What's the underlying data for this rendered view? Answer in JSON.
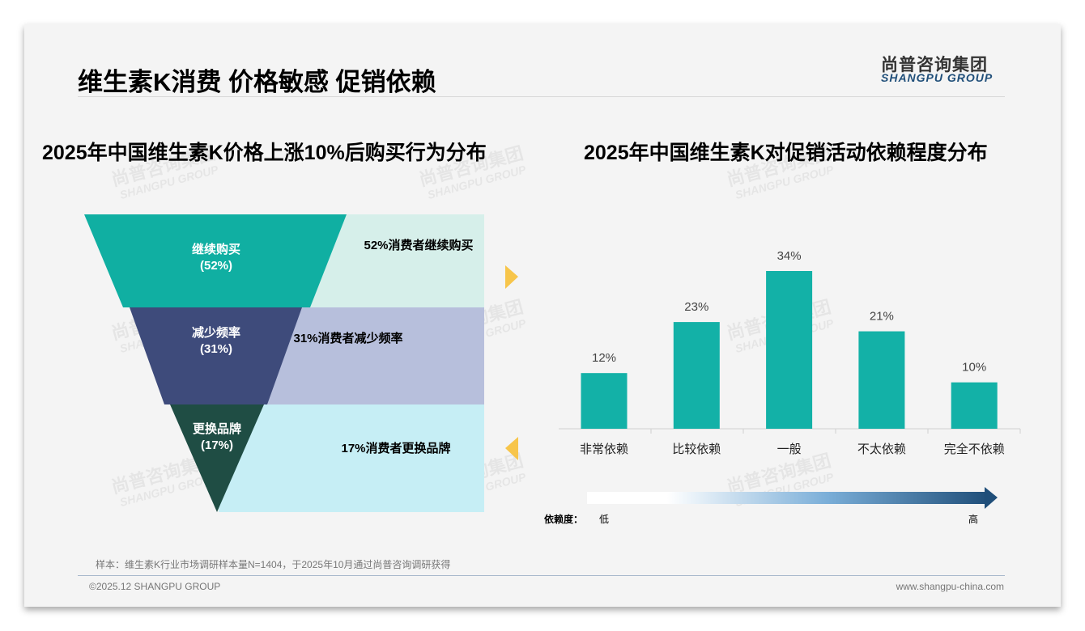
{
  "header": {
    "title": "维生素K消费 价格敏感 促销依赖",
    "logo_cn": "尚普咨询集团",
    "logo_en": "SHANGPU GROUP"
  },
  "watermark": {
    "cn": "尚普咨询集团",
    "en": "SHANGPU GROUP"
  },
  "chart_data": [
    {
      "type": "funnel",
      "title": "2025年中国维生素K价格上涨10%后购买行为分布",
      "stages": [
        {
          "label": "继续购买",
          "value_label": "(52%)",
          "value": 52,
          "desc": "52%消费者继续购买",
          "color": "#10afa2",
          "panel": "#d6efea"
        },
        {
          "label": "减少频率",
          "value_label": "(31%)",
          "value": 31,
          "desc": "31%消费者减少频率",
          "color": "#3e4b7b",
          "panel": "#b7bfdc"
        },
        {
          "label": "更换品牌",
          "value_label": "(17%)",
          "value": 17,
          "desc": "17%消费者更换品牌",
          "color": "#1f4d44",
          "panel": "#c6eef5"
        }
      ]
    },
    {
      "type": "bar",
      "title": "2025年中国维生素K对促销活动依赖程度分布",
      "categories": [
        "非常依赖",
        "比较依赖",
        "一般",
        "不太依赖",
        "完全不依赖"
      ],
      "values": [
        12,
        23,
        34,
        21,
        10
      ],
      "data_labels": [
        "12%",
        "23%",
        "34%",
        "21%",
        "10%"
      ],
      "color": "#13b1a7",
      "ylim": [
        0,
        40
      ],
      "grid": false,
      "scale": {
        "label": "依赖度：",
        "low": "低",
        "high": "高"
      }
    }
  ],
  "footer": {
    "note": "样本：维生素K行业市场调研样本量N=1404，于2025年10月通过尚普咨询调研获得",
    "copyright": "©2025.12 SHANGPU GROUP",
    "website": "www.shangpu-china.com"
  }
}
